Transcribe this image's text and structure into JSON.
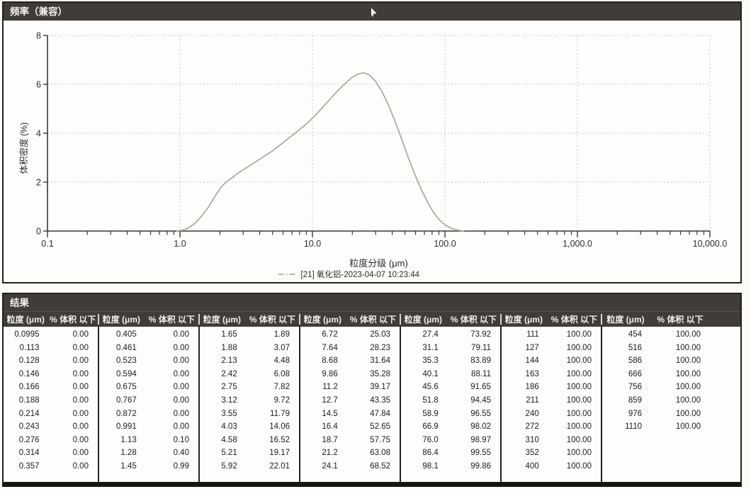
{
  "frequency_panel": {
    "title": "频率（兼容）"
  },
  "chart_data": {
    "type": "line",
    "title": "频率（兼容）",
    "xlabel": "粒度分级 (μm)",
    "ylabel": "体积密度 (%)",
    "x_scale": "log",
    "xlim": [
      0.1,
      10000
    ],
    "ylim": [
      0,
      8
    ],
    "x_ticks": [
      0.1,
      1,
      10,
      100,
      1000,
      10000
    ],
    "x_tick_labels": [
      "0.1",
      "1.0",
      "10.0",
      "100.0",
      "1,000.0",
      "10,000.0"
    ],
    "y_ticks": [
      0,
      2,
      4,
      6,
      8
    ],
    "y_tick_labels": [
      "0",
      "2",
      "4",
      "6",
      "8"
    ],
    "grid": true,
    "legend_position": "bottom-center",
    "series": [
      {
        "name": "[21] 氧化铝-2023-04-07 10:23:44",
        "color": "#a9aea6",
        "points": [
          [
            0.95,
            0
          ],
          [
            1.05,
            0.04
          ],
          [
            1.15,
            0.12
          ],
          [
            1.3,
            0.32
          ],
          [
            1.45,
            0.6
          ],
          [
            1.65,
            1.0
          ],
          [
            1.85,
            1.45
          ],
          [
            2.05,
            1.8
          ],
          [
            2.25,
            2.02
          ],
          [
            2.5,
            2.2
          ],
          [
            2.8,
            2.4
          ],
          [
            3.2,
            2.6
          ],
          [
            3.7,
            2.82
          ],
          [
            4.3,
            3.05
          ],
          [
            5.0,
            3.28
          ],
          [
            5.8,
            3.55
          ],
          [
            6.8,
            3.85
          ],
          [
            8.0,
            4.15
          ],
          [
            9.3,
            4.45
          ],
          [
            10.8,
            4.8
          ],
          [
            12.6,
            5.2
          ],
          [
            14.7,
            5.6
          ],
          [
            17.0,
            5.95
          ],
          [
            19.5,
            6.25
          ],
          [
            22.0,
            6.42
          ],
          [
            24.5,
            6.47
          ],
          [
            27.0,
            6.38
          ],
          [
            30.0,
            6.12
          ],
          [
            33.5,
            5.7
          ],
          [
            37.5,
            5.15
          ],
          [
            42.0,
            4.5
          ],
          [
            47.0,
            3.78
          ],
          [
            52.5,
            3.05
          ],
          [
            59.0,
            2.35
          ],
          [
            66.0,
            1.72
          ],
          [
            74.0,
            1.18
          ],
          [
            82.0,
            0.76
          ],
          [
            91.0,
            0.45
          ],
          [
            101.0,
            0.24
          ],
          [
            112.0,
            0.11
          ],
          [
            124.0,
            0.04
          ],
          [
            138.0,
            0.0
          ]
        ]
      }
    ]
  },
  "results": {
    "title": "结果",
    "size_header": "粒度 (μm)",
    "pct_header": "% 体积 以下",
    "groups": [
      [
        [
          "0.0995",
          "0.00"
        ],
        [
          "0.113",
          "0.00"
        ],
        [
          "0.128",
          "0.00"
        ],
        [
          "0.146",
          "0.00"
        ],
        [
          "0.166",
          "0.00"
        ],
        [
          "0.188",
          "0.00"
        ],
        [
          "0.214",
          "0.00"
        ],
        [
          "0.243",
          "0.00"
        ],
        [
          "0.276",
          "0.00"
        ],
        [
          "0.314",
          "0.00"
        ],
        [
          "0.357",
          "0.00"
        ]
      ],
      [
        [
          "0.405",
          "0.00"
        ],
        [
          "0.461",
          "0.00"
        ],
        [
          "0.523",
          "0.00"
        ],
        [
          "0.594",
          "0.00"
        ],
        [
          "0.675",
          "0.00"
        ],
        [
          "0.767",
          "0.00"
        ],
        [
          "0.872",
          "0.00"
        ],
        [
          "0.991",
          "0.00"
        ],
        [
          "1.13",
          "0.10"
        ],
        [
          "1.28",
          "0.40"
        ],
        [
          "1.45",
          "0.99"
        ]
      ],
      [
        [
          "1.65",
          "1.89"
        ],
        [
          "1.88",
          "3.07"
        ],
        [
          "2.13",
          "4.48"
        ],
        [
          "2.42",
          "6.08"
        ],
        [
          "2.75",
          "7.82"
        ],
        [
          "3.12",
          "9.72"
        ],
        [
          "3.55",
          "11.79"
        ],
        [
          "4.03",
          "14.06"
        ],
        [
          "4.58",
          "16.52"
        ],
        [
          "5.21",
          "19.17"
        ],
        [
          "5.92",
          "22.01"
        ]
      ],
      [
        [
          "6.72",
          "25.03"
        ],
        [
          "7.64",
          "28.23"
        ],
        [
          "8.68",
          "31.64"
        ],
        [
          "9.86",
          "35.28"
        ],
        [
          "11.2",
          "39.17"
        ],
        [
          "12.7",
          "43.35"
        ],
        [
          "14.5",
          "47.84"
        ],
        [
          "16.4",
          "52.65"
        ],
        [
          "18.7",
          "57.75"
        ],
        [
          "21.2",
          "63.08"
        ],
        [
          "24.1",
          "68.52"
        ]
      ],
      [
        [
          "27.4",
          "73.92"
        ],
        [
          "31.1",
          "79.11"
        ],
        [
          "35.3",
          "83.89"
        ],
        [
          "40.1",
          "88.11"
        ],
        [
          "45.6",
          "91.65"
        ],
        [
          "51.8",
          "94.45"
        ],
        [
          "58.9",
          "96.55"
        ],
        [
          "66.9",
          "98.02"
        ],
        [
          "76.0",
          "98.97"
        ],
        [
          "86.4",
          "99.55"
        ],
        [
          "98.1",
          "99.86"
        ]
      ],
      [
        [
          "111",
          "100.00"
        ],
        [
          "127",
          "100.00"
        ],
        [
          "144",
          "100.00"
        ],
        [
          "163",
          "100.00"
        ],
        [
          "186",
          "100.00"
        ],
        [
          "211",
          "100.00"
        ],
        [
          "240",
          "100.00"
        ],
        [
          "272",
          "100.00"
        ],
        [
          "310",
          "100.00"
        ],
        [
          "352",
          "100.00"
        ],
        [
          "400",
          "100.00"
        ]
      ],
      [
        [
          "454",
          "100.00"
        ],
        [
          "516",
          "100.00"
        ],
        [
          "586",
          "100.00"
        ],
        [
          "666",
          "100.00"
        ],
        [
          "756",
          "100.00"
        ],
        [
          "859",
          "100.00"
        ],
        [
          "976",
          "100.00"
        ],
        [
          "1110",
          "100.00"
        ]
      ]
    ]
  },
  "colors": {
    "titlebar": "#403d38",
    "panel_border": "#22211e",
    "curve": "#a9aea6",
    "grid": "#c9c8c1",
    "axis": "#3a3936"
  }
}
